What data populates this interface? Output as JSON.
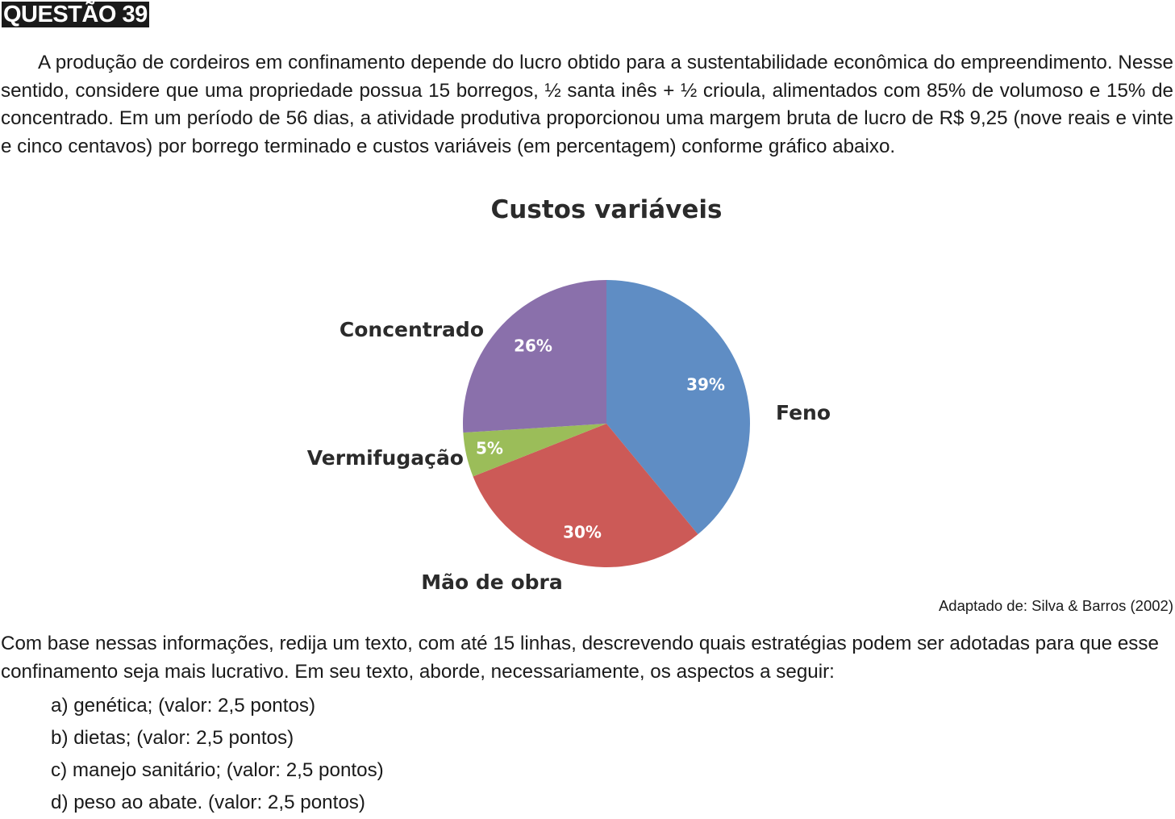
{
  "question": {
    "heading": "QUESTÃO 39",
    "intro": "A produção de cordeiros em confinamento depende do lucro obtido para a sustentabilidade econômica do empreendimento. Nesse sentido, considere que uma propriedade possua 15 borregos, ½ santa inês + ½ crioula, alimentados com 85% de volumoso e 15% de concentrado. Em um período de 56 dias, a atividade produtiva proporcionou uma margem bruta de lucro de R$ 9,25 (nove reais e vinte e cinco centavos) por borrego terminado e custos variáveis (em percentagem) conforme gráfico abaixo.",
    "source": "Adaptado de: Silva & Barros (2002)",
    "prompt": "Com base nessas informações, redija um texto, com até 15 linhas, descrevendo quais estratégias podem ser adotadas para que esse confinamento seja mais lucrativo. Em seu texto, aborde, necessariamente, os aspectos a seguir:",
    "items": [
      "a) genética; (valor: 2,5 pontos)",
      "b) dietas; (valor: 2,5 pontos)",
      "c) manejo sanitário; (valor: 2,5 pontos)",
      "d) peso ao abate. (valor: 2,5 pontos)"
    ]
  },
  "chart_data": {
    "type": "pie",
    "title": "Custos variáveis",
    "slices": [
      {
        "label": "Feno",
        "value": 39,
        "display": "39%",
        "color": "#5f8dc4"
      },
      {
        "label": "Mão de obra",
        "value": 30,
        "display": "30%",
        "color": "#cc5a57"
      },
      {
        "label": "Vermifugação",
        "value": 5,
        "display": "5%",
        "color": "#9bbd59"
      },
      {
        "label": "Concentrado",
        "value": 26,
        "display": "26%",
        "color": "#8a70ab"
      }
    ],
    "legend": "none",
    "labels": "outside"
  }
}
